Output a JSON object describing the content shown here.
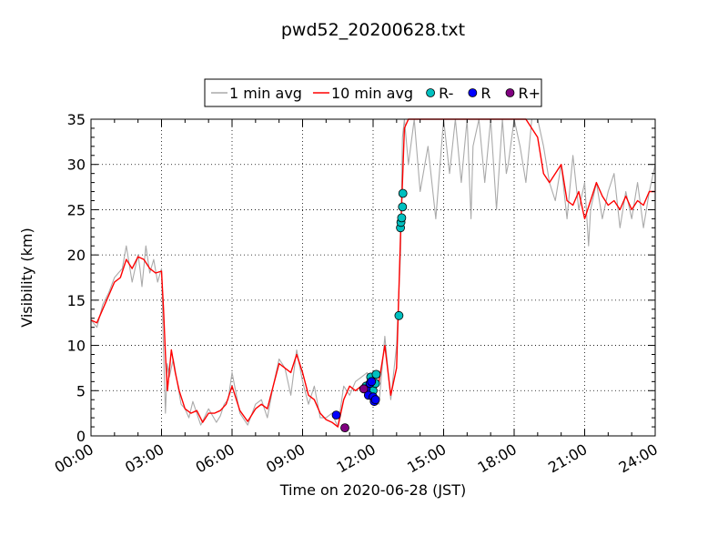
{
  "chart_data": {
    "type": "line",
    "title": "pwd52_20200628.txt",
    "xlabel": "Time on 2020-06-28 (JST)",
    "ylabel": "Visibility (km)",
    "xlim": [
      "2020-06-28 00:00",
      "2020-06-29 00:00"
    ],
    "ylim": [
      0,
      35
    ],
    "grid": true,
    "legend_position": "top-center",
    "x_ticks": [
      "00:00",
      "03:00",
      "06:00",
      "09:00",
      "12:00",
      "15:00",
      "18:00",
      "21:00",
      "24:00"
    ],
    "y_ticks": [
      "0",
      "5",
      "10",
      "15",
      "20",
      "25",
      "30",
      "35"
    ],
    "series": [
      {
        "name": "1 min avg",
        "kind": "line",
        "color": "#aaaaaa",
        "x": [
          "00:00",
          "00:15",
          "00:30",
          "00:45",
          "01:00",
          "01:10",
          "01:20",
          "01:30",
          "01:45",
          "02:00",
          "02:05",
          "02:10",
          "02:20",
          "02:30",
          "02:40",
          "02:50",
          "03:00",
          "03:05",
          "03:10",
          "03:15",
          "03:20",
          "03:30",
          "03:40",
          "03:50",
          "04:00",
          "04:10",
          "04:20",
          "04:40",
          "05:00",
          "05:20",
          "05:30",
          "05:40",
          "05:50",
          "06:00",
          "06:20",
          "06:40",
          "07:00",
          "07:15",
          "07:30",
          "07:45",
          "08:00",
          "08:15",
          "08:30",
          "08:45",
          "09:00",
          "09:15",
          "09:30",
          "09:45",
          "10:00",
          "10:15",
          "10:30",
          "10:45",
          "11:00",
          "11:15",
          "11:30",
          "11:45",
          "12:00",
          "12:15",
          "12:30",
          "12:45",
          "13:00",
          "13:10",
          "13:15",
          "13:20",
          "13:30",
          "13:45",
          "14:00",
          "14:20",
          "14:40",
          "15:00",
          "15:15",
          "15:30",
          "15:45",
          "16:00",
          "16:10",
          "16:15",
          "16:30",
          "16:45",
          "17:00",
          "17:15",
          "17:30",
          "17:40",
          "17:45",
          "18:00",
          "18:15",
          "18:30",
          "18:45",
          "19:00",
          "19:15",
          "19:30",
          "19:45",
          "20:00",
          "20:15",
          "20:30",
          "20:45",
          "21:00",
          "21:10",
          "21:15",
          "21:30",
          "21:45",
          "22:00",
          "22:15",
          "22:30",
          "22:45",
          "23:00",
          "23:15",
          "23:30",
          "23:45",
          "24:00"
        ],
        "y": [
          12.8,
          12.0,
          14.5,
          15.8,
          17.5,
          18.0,
          18.5,
          21.0,
          17.0,
          20.0,
          18.5,
          16.5,
          21.0,
          18.0,
          19.5,
          17.0,
          18.5,
          9.5,
          2.5,
          8.0,
          6.5,
          8.5,
          6.0,
          3.5,
          3.0,
          2.0,
          3.8,
          1.2,
          3.0,
          1.5,
          2.2,
          3.5,
          4.0,
          7.0,
          2.5,
          1.2,
          3.5,
          4.0,
          2.0,
          5.5,
          8.5,
          7.5,
          4.5,
          9.5,
          6.0,
          3.5,
          5.5,
          2.0,
          2.0,
          2.5,
          1.0,
          5.5,
          4.5,
          6.0,
          6.5,
          7.0,
          4.0,
          3.5,
          11.0,
          4.0,
          10.0,
          20.0,
          33.0,
          35.0,
          30.0,
          35.0,
          27.0,
          32.0,
          24.0,
          35.0,
          29.0,
          35.0,
          28.0,
          35.0,
          24.0,
          32.0,
          35.0,
          28.0,
          35.0,
          25.0,
          35.0,
          29.0,
          30.0,
          35.0,
          32.0,
          28.0,
          35.0,
          35.0,
          32.0,
          28.0,
          26.0,
          30.0,
          24.0,
          31.0,
          25.0,
          28.0,
          21.0,
          25.0,
          28.0,
          24.0,
          27.0,
          29.0,
          23.0,
          27.0,
          24.0,
          28.0,
          23.0,
          27.0,
          30.0
        ]
      },
      {
        "name": "10 min avg",
        "kind": "line",
        "color": "#ff0000",
        "x": [
          "00:00",
          "00:15",
          "00:30",
          "00:45",
          "01:00",
          "01:15",
          "01:30",
          "01:45",
          "02:00",
          "02:15",
          "02:30",
          "02:45",
          "03:00",
          "03:05",
          "03:10",
          "03:15",
          "03:25",
          "03:35",
          "03:45",
          "04:00",
          "04:15",
          "04:30",
          "04:45",
          "05:00",
          "05:15",
          "05:30",
          "05:45",
          "06:00",
          "06:20",
          "06:40",
          "07:00",
          "07:15",
          "07:30",
          "07:45",
          "08:00",
          "08:15",
          "08:30",
          "08:45",
          "09:00",
          "09:15",
          "09:30",
          "09:45",
          "10:00",
          "10:15",
          "10:30",
          "10:45",
          "11:00",
          "11:15",
          "11:30",
          "11:45",
          "12:00",
          "12:15",
          "12:30",
          "12:45",
          "13:00",
          "13:10",
          "13:20",
          "13:30",
          "13:45",
          "14:00",
          "14:30",
          "15:00",
          "15:30",
          "16:00",
          "16:30",
          "17:00",
          "17:30",
          "18:00",
          "18:30",
          "19:00",
          "19:15",
          "19:30",
          "19:45",
          "20:00",
          "20:15",
          "20:30",
          "20:45",
          "21:00",
          "21:15",
          "21:30",
          "21:45",
          "22:00",
          "22:15",
          "22:30",
          "22:45",
          "23:00",
          "23:15",
          "23:30",
          "23:45",
          "24:00"
        ],
        "y": [
          12.8,
          12.5,
          14.0,
          15.5,
          17.0,
          17.5,
          19.5,
          18.5,
          19.8,
          19.5,
          18.5,
          18.0,
          18.2,
          14.0,
          9.0,
          5.0,
          9.5,
          7.0,
          5.0,
          3.0,
          2.5,
          2.8,
          1.5,
          2.5,
          2.5,
          2.8,
          3.5,
          5.5,
          2.8,
          1.6,
          3.0,
          3.5,
          3.0,
          5.5,
          8.0,
          7.5,
          7.0,
          9.0,
          7.0,
          4.5,
          4.0,
          2.5,
          1.8,
          1.5,
          1.0,
          4.0,
          5.5,
          5.0,
          5.5,
          6.0,
          5.0,
          6.0,
          10.0,
          4.5,
          7.5,
          22.0,
          34.0,
          35.0,
          35.0,
          35.0,
          35.0,
          35.0,
          35.0,
          35.0,
          35.0,
          35.0,
          35.0,
          35.0,
          35.0,
          33.0,
          29.0,
          28.0,
          29.0,
          30.0,
          26.0,
          25.5,
          27.0,
          24.0,
          26.0,
          28.0,
          26.5,
          25.5,
          26.0,
          25.0,
          26.5,
          25.0,
          26.0,
          25.5,
          27.0,
          27.0
        ]
      },
      {
        "name": "R-",
        "kind": "scatter",
        "color": "#00c0c0",
        "x": [
          "11:42",
          "11:48",
          "11:54",
          "12:00",
          "12:06",
          "12:08",
          "13:06",
          "13:10",
          "13:11",
          "13:13",
          "13:15",
          "13:16"
        ],
        "y": [
          5.5,
          5.0,
          6.5,
          5.0,
          5.8,
          6.8,
          13.3,
          23.0,
          23.6,
          24.1,
          25.3,
          26.8
        ]
      },
      {
        "name": "R",
        "kind": "scatter",
        "color": "#0000ff",
        "x": [
          "10:26",
          "11:42",
          "11:48",
          "11:52",
          "11:56",
          "12:00",
          "12:03",
          "12:06"
        ],
        "y": [
          2.3,
          5.2,
          4.5,
          5.8,
          6.0,
          4.3,
          3.8,
          4.0
        ]
      },
      {
        "name": "R+",
        "kind": "scatter",
        "color": "#800080",
        "x": [
          "10:48",
          "11:36"
        ],
        "y": [
          0.9,
          5.2
        ]
      }
    ]
  }
}
